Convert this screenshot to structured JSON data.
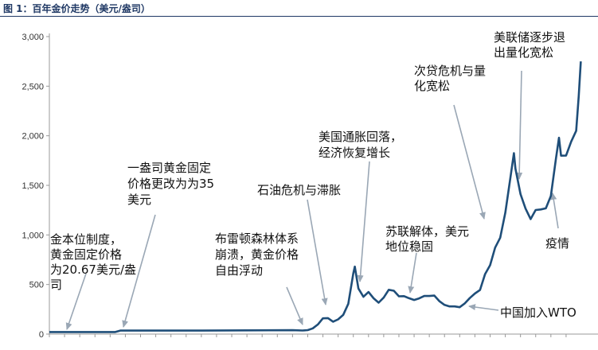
{
  "figure": {
    "title": "图 1：百年金价走势（美元/盎司）"
  },
  "colors": {
    "line": "#1f4e79",
    "arrow": "#9aa7b5",
    "title": "#1f3864",
    "axis": "#999999"
  },
  "chart_data": {
    "type": "line",
    "ylim": [
      0,
      3000
    ],
    "yticks": [
      "0",
      "500",
      "1,000",
      "1,500",
      "2,000",
      "2,500",
      "3,000"
    ],
    "xlim": [
      1920,
      2025
    ],
    "grid": false,
    "series": [
      {
        "x": [
          1920,
          1933,
          1934,
          1950,
          1968,
          1970,
          1971,
          1972,
          1973,
          1974,
          1975,
          1976,
          1977,
          1978,
          1979,
          1980,
          1980.3,
          1981,
          1982,
          1983,
          1984,
          1985,
          1986,
          1987,
          1988,
          1989,
          1990,
          1991,
          1992,
          1993,
          1994,
          1995,
          1996,
          1997,
          1998,
          1999,
          2000,
          2001,
          2002,
          2003,
          2004,
          2005,
          2006,
          2007,
          2008,
          2009,
          2010,
          2011,
          2011.7,
          2012,
          2013,
          2014,
          2015,
          2016,
          2017,
          2018,
          2019,
          2020,
          2020.6,
          2021,
          2022,
          2023,
          2024,
          2024.5,
          2024.9
        ],
        "y": [
          20.67,
          20.67,
          35,
          35,
          39,
          36,
          40,
          58,
          97,
          159,
          161,
          125,
          148,
          193,
          306,
          612,
          680,
          460,
          376,
          424,
          361,
          317,
          368,
          447,
          437,
          381,
          383,
          362,
          344,
          360,
          384,
          384,
          388,
          331,
          294,
          279,
          279,
          271,
          310,
          363,
          409,
          444,
          603,
          695,
          872,
          972,
          1224,
          1572,
          1825,
          1669,
          1411,
          1266,
          1160,
          1251,
          1257,
          1268,
          1393,
          1770,
          1980,
          1799,
          1800,
          1940,
          2050,
          2400,
          2750
        ]
      }
    ],
    "annotations": [
      {
        "lines": [
          "金本位制度，",
          "黄金固定价格",
          "为20.67美元/盎",
          "司"
        ]
      },
      {
        "lines": [
          "一盎司黄金固定",
          "价格更改为为35",
          "美元"
        ]
      },
      {
        "lines": [
          "布雷顿森林体系",
          "崩溃，黄金价格",
          "自由浮动"
        ]
      },
      {
        "lines": [
          "石油危机与滞胀"
        ]
      },
      {
        "lines": [
          "美国通胀回落，",
          "经济恢复增长"
        ]
      },
      {
        "lines": [
          "苏联解体，美元",
          "地位稳固"
        ]
      },
      {
        "lines": [
          "次贷危机与量",
          "化宽松"
        ]
      },
      {
        "lines": [
          "美联储逐步退",
          "出量化宽松"
        ]
      },
      {
        "lines": [
          "中国加入WTO"
        ]
      },
      {
        "lines": [
          "疫情"
        ]
      }
    ]
  }
}
